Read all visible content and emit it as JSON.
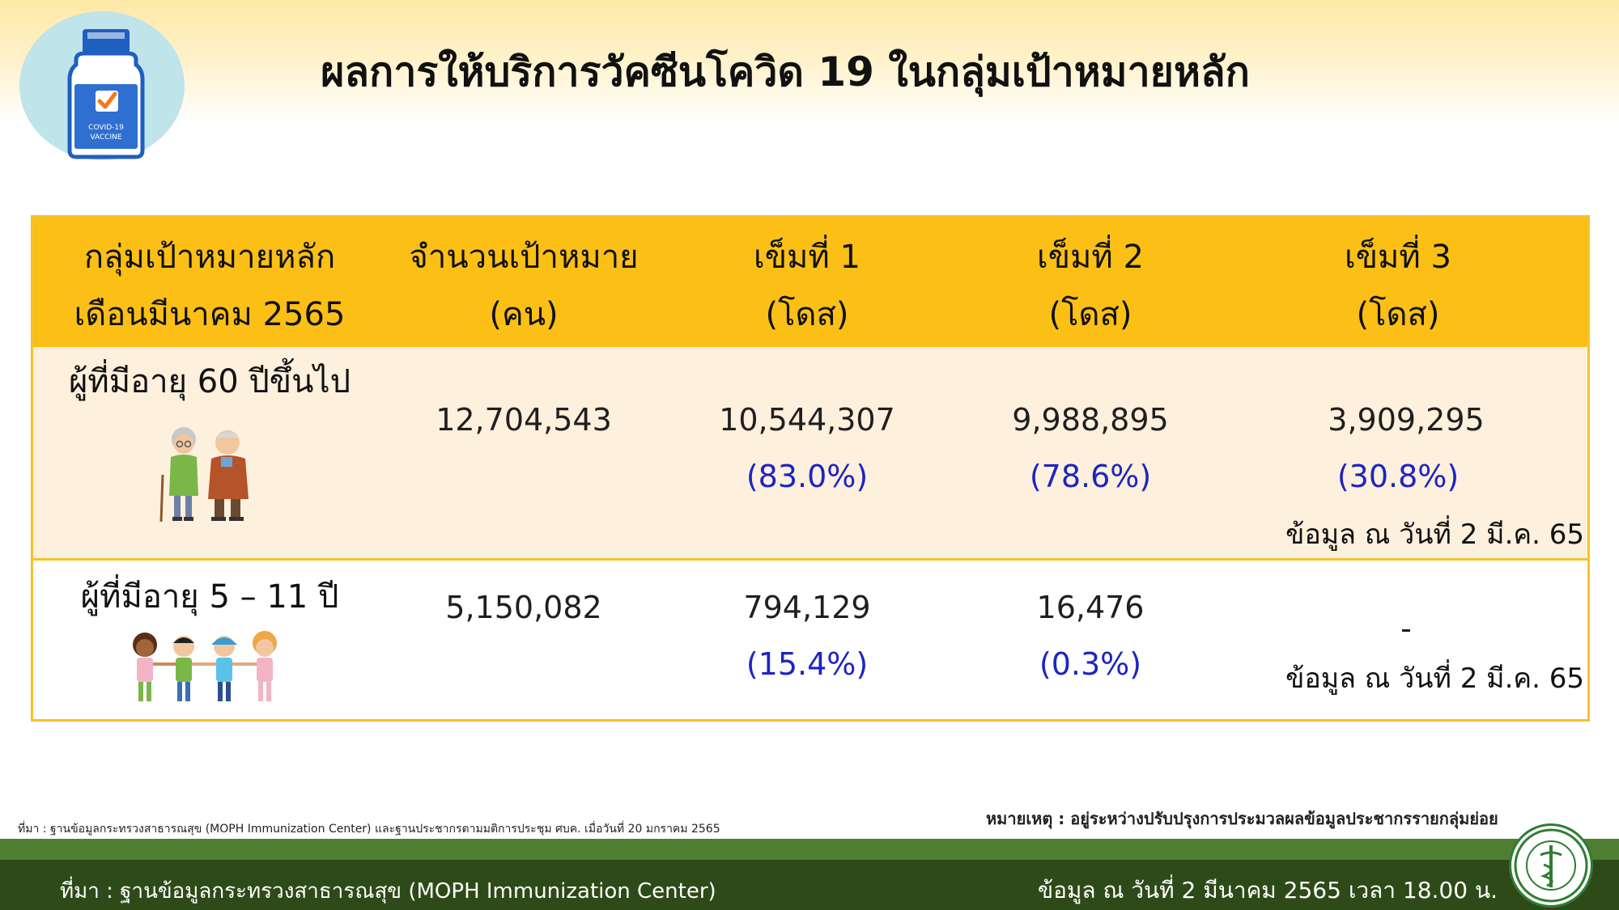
{
  "header": {
    "title": "ผลการให้บริการวัคซีนโควิด 19 ในกลุ่มเป้าหมายหลัก",
    "logo_text_1": "COVID-19",
    "logo_text_2": "VACCINE",
    "logo_icon": "vaccine-bottle-icon"
  },
  "table": {
    "headers": [
      {
        "line1": "กลุ่มเป้าหมายหลัก",
        "line2": "เดือนมีนาคม 2565"
      },
      {
        "line1": "จำนวนเป้าหมาย",
        "line2": "(คน)"
      },
      {
        "line1": "เข็มที่ 1",
        "line2": "(โดส)"
      },
      {
        "line1": "เข็มที่ 2",
        "line2": "(โดส)"
      },
      {
        "line1": "เข็มที่ 3",
        "line2": "(โดส)"
      }
    ],
    "rows": [
      {
        "group": "ผู้ที่มีอายุ 60 ปีขึ้นไป",
        "icon": "elderly-couple-icon",
        "target": "12,704,543",
        "dose1": "10,544,307",
        "dose1_pct": "(83.0%)",
        "dose2": "9,988,895",
        "dose2_pct": "(78.6%)",
        "dose3": "3,909,295",
        "dose3_pct": "(30.8%)",
        "note": "ข้อมูล ณ วันที่ 2 มี.ค. 65"
      },
      {
        "group": "ผู้ที่มีอายุ 5 – 11 ปี",
        "icon": "children-group-icon",
        "target": "5,150,082",
        "dose1": "794,129",
        "dose1_pct": "(15.4%)",
        "dose2": "16,476",
        "dose2_pct": "(0.3%)",
        "dose3": "-",
        "note": "ข้อมูล ณ วันที่ 2 มี.ค. 65"
      }
    ]
  },
  "footnotes": {
    "source_small": "ที่มา : ฐานข้อมูลกระทรวงสาธารณสุข (MOPH Immunization Center) และฐานประชากรตามมติการประชุม ศบค. เมื่อวันที่ 20 มกราคม 2565",
    "remark": "หมายเหตุ : อยู่ระหว่างปรับปรุงการประมวลผลข้อมูลประชากรรายกลุ่มย่อย"
  },
  "footer": {
    "source": "ที่มา : ฐานข้อมูลกระทรวงสาธารณสุข (MOPH Immunization Center)",
    "date": "ข้อมูล ณ วันที่ 2 มีนาคม 2565 เวลา 18.00 น.",
    "seal_icon": "moph-seal-icon"
  },
  "colors": {
    "header_band": "#fbbf16",
    "row_alt": "#fdf0dc",
    "percent_text": "#1e24c2",
    "footer": "#2e4a18"
  }
}
